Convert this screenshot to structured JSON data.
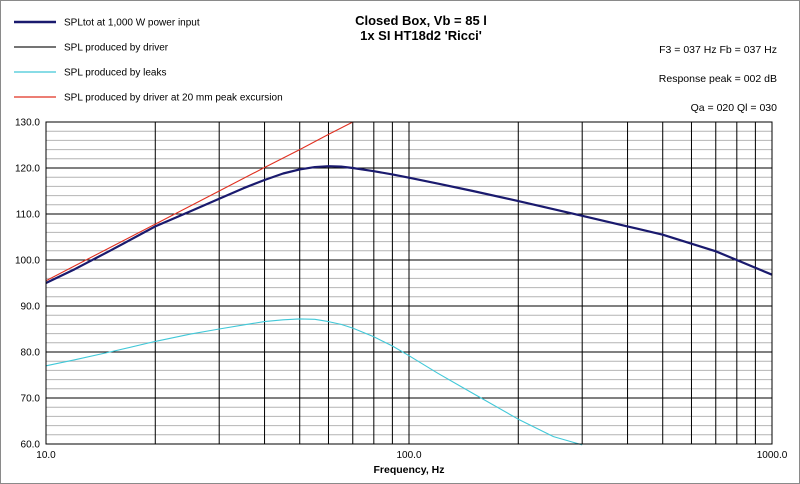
{
  "chart_data": {
    "type": "line",
    "title_lines": [
      "Closed Box, Vb = 85 l",
      "1x SI HT18d2 'Ricci'"
    ],
    "xlabel": "Frequency, Hz",
    "ylabel": "",
    "x_scale": "log",
    "xlim": [
      10,
      1000
    ],
    "ylim": [
      60,
      130
    ],
    "x_tick_labels": [
      "10.0",
      "100.0",
      "1000.0"
    ],
    "y_tick_labels": [
      "130.0",
      "120.0",
      "110.0",
      "100.0",
      "90.0",
      "80.0",
      "70.0",
      "60.0"
    ],
    "grid": true,
    "legend_position": "top-left",
    "info_lines": [
      "F3 = 037  Hz  Fb = 037  Hz",
      "Response peak = 002  dB",
      "Qa = 020   Ql = 030"
    ],
    "series": [
      {
        "name": "SPLtot at 1,000 W power input",
        "color": "#1a1a6e",
        "x": [
          10,
          12,
          15,
          20,
          25,
          30,
          35,
          40,
          45,
          50,
          55,
          60,
          65,
          70,
          80,
          90,
          100,
          120,
          150,
          200,
          300,
          400,
          500,
          700,
          1000
        ],
        "y": [
          95,
          98,
          102,
          107.3,
          110.6,
          113.3,
          115.6,
          117.4,
          118.8,
          119.7,
          120.2,
          120.4,
          120.3,
          120,
          119.3,
          118.6,
          117.9,
          116.6,
          115,
          112.8,
          109.6,
          107.3,
          105.5,
          101.9,
          96.8
        ]
      },
      {
        "name": "SPL produced by driver",
        "color": "#202020",
        "x": [],
        "y": []
      },
      {
        "name": "SPL produced by leaks",
        "color": "#40c8d8",
        "x": [
          10,
          12,
          15,
          20,
          25,
          30,
          35,
          40,
          45,
          50,
          55,
          60,
          65,
          70,
          80,
          90,
          100,
          120,
          150,
          200,
          250,
          300
        ],
        "y": [
          77,
          78.3,
          80,
          82.3,
          83.9,
          85,
          85.9,
          86.6,
          87,
          87.2,
          87.1,
          86.6,
          86,
          85.2,
          83.3,
          81.3,
          79.2,
          75.4,
          71,
          65.4,
          61.6,
          59.8
        ]
      },
      {
        "name": "SPL produced by driver at 20 mm peak excursion",
        "color": "#e03020",
        "x": [
          10,
          20,
          30,
          40,
          50,
          60,
          70
        ],
        "y": [
          95.5,
          107.8,
          115,
          120.1,
          124,
          127.3,
          130
        ]
      }
    ]
  }
}
